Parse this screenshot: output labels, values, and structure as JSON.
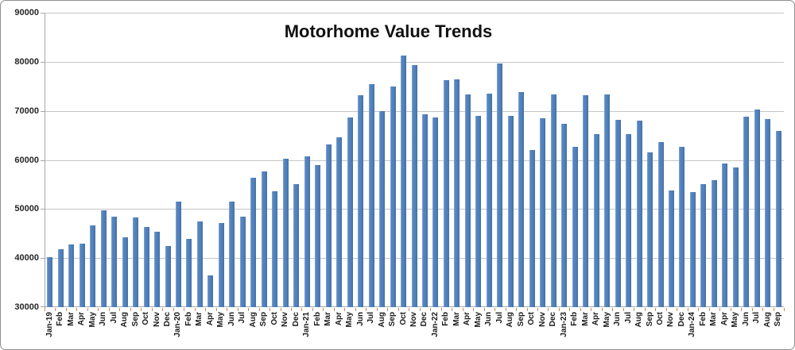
{
  "chart_data": {
    "type": "bar",
    "title": "Motorhome Value Trends",
    "xlabel": "",
    "ylabel": "",
    "ylim": [
      30000,
      90000
    ],
    "ytick_interval": 10000,
    "grid": true,
    "legend": "none",
    "bar_color": "#4f81bd",
    "gridline_color": "#c6c6c6",
    "axis_color": "#a6a6a6",
    "xtick_color": "#bb8e66",
    "categories": [
      "Jan-19",
      "Feb",
      "Mar",
      "Apr",
      "May",
      "Jun",
      "Jul",
      "Aug",
      "Sep",
      "Oct",
      "Nov",
      "Dec",
      "Jan-20",
      "Feb",
      "Mar",
      "Apr",
      "May",
      "Jun",
      "Jul",
      "Aug",
      "Sep",
      "Oct",
      "Nov",
      "Dec",
      "Jan-21",
      "Feb",
      "Mar",
      "Apr",
      "May",
      "Jun",
      "Jul",
      "Aug",
      "Sep",
      "Oct",
      "Nov",
      "Dec",
      "Jan-22",
      "Feb",
      "Mar",
      "Apr",
      "May",
      "Jun",
      "Jul",
      "Aug",
      "Sep",
      "Oct",
      "Nov",
      "Dec",
      "Jan-23",
      "Feb",
      "Mar",
      "Apr",
      "May",
      "Jun",
      "Jul",
      "Aug",
      "Sep",
      "Oct",
      "Nov",
      "Dec",
      "Jan-24",
      "Feb",
      "Mar",
      "Apr",
      "May",
      "Jun",
      "Jul",
      "Aug",
      "Sep"
    ],
    "values": [
      40200,
      41800,
      42700,
      42900,
      46700,
      49700,
      48500,
      44200,
      48300,
      46300,
      45300,
      42500,
      51500,
      43900,
      47400,
      36400,
      47200,
      51500,
      48500,
      56300,
      57700,
      53600,
      60200,
      55100,
      60800,
      59000,
      63100,
      64600,
      68600,
      73100,
      75500,
      69900,
      74900,
      81300,
      79300,
      69300,
      68700,
      76300,
      76400,
      73300,
      68900,
      73500,
      79600,
      69000,
      73900,
      62000,
      68500,
      73400,
      67400,
      62700,
      73200,
      65300,
      73300,
      68200,
      65300,
      68000,
      61500,
      63600,
      53700,
      62600,
      53400,
      55100,
      55800,
      59200,
      58400,
      68800,
      70300,
      68300,
      65900
    ]
  }
}
